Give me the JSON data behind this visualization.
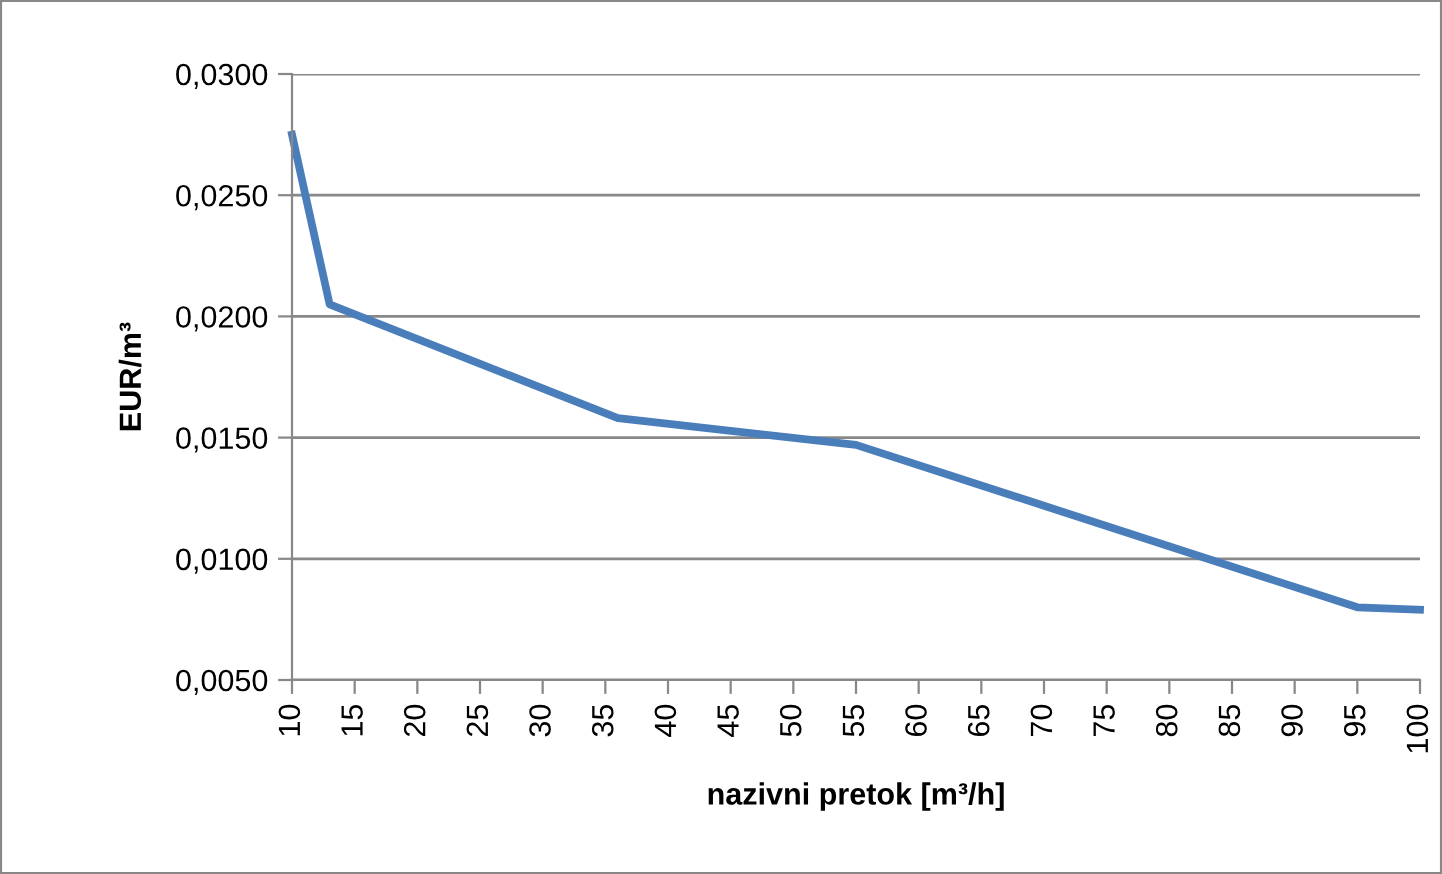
{
  "chart_data": {
    "type": "line",
    "xlabel": "nazivni pretok [m³/h]",
    "ylabel": "EUR/m³",
    "x": [
      10,
      13,
      36,
      55,
      95,
      100
    ],
    "series": [
      {
        "color": "#4a7ebb",
        "values": [
          0.0275,
          0.0205,
          0.0158,
          0.0147,
          0.008,
          0.0079
        ]
      }
    ],
    "xlim": [
      10,
      100
    ],
    "xticks": [
      10,
      15,
      20,
      25,
      30,
      35,
      40,
      45,
      50,
      55,
      60,
      65,
      70,
      75,
      80,
      85,
      90,
      95,
      100
    ],
    "ylim": [
      0.005,
      0.03
    ],
    "yticks": [
      {
        "value": 0.005,
        "label": "0,0050"
      },
      {
        "value": 0.01,
        "label": "0,0100"
      },
      {
        "value": 0.015,
        "label": "0,0150"
      },
      {
        "value": 0.02,
        "label": "0,0200"
      },
      {
        "value": 0.025,
        "label": "0,0250"
      },
      {
        "value": 0.03,
        "label": "0,0300"
      }
    ],
    "grid": "y",
    "marker": "none",
    "line_style": "solid",
    "legend": false
  }
}
